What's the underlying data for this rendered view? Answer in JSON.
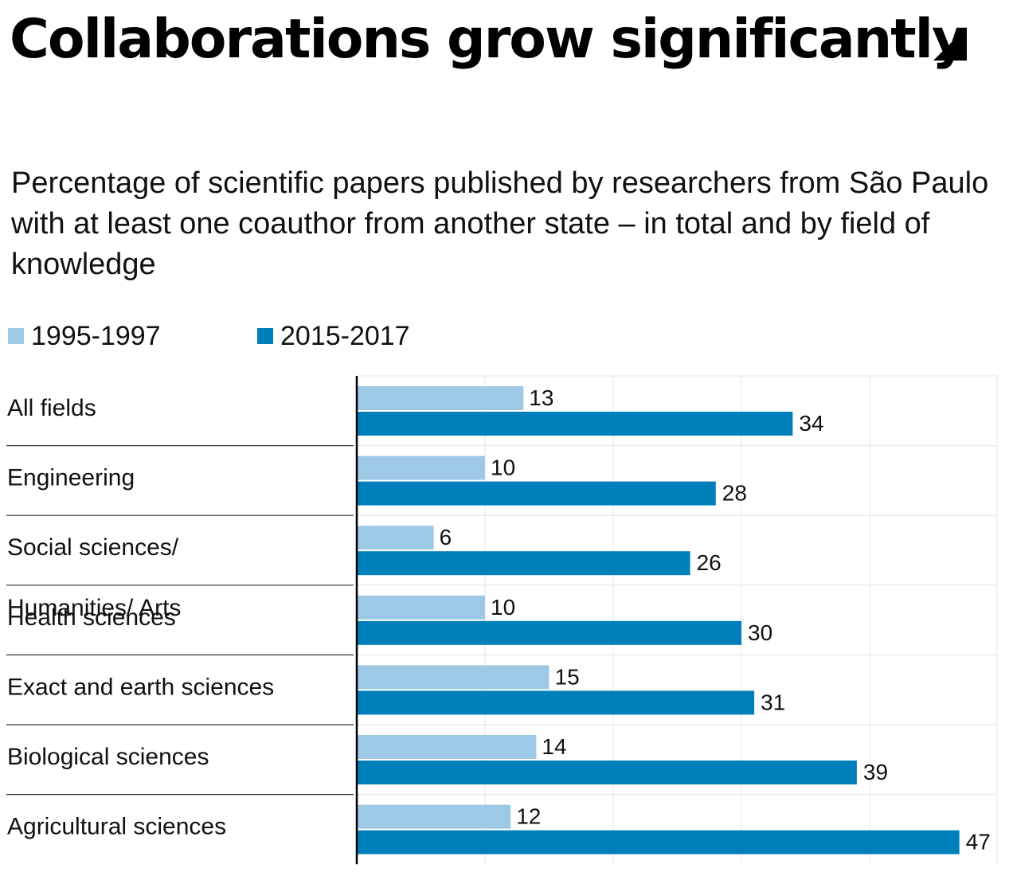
{
  "header": {
    "title": "Collaborations grow significantly",
    "subtitle": "Percentage of scientific papers published by researchers from São Paulo with at least one coauthor from another state – in total and by field of knowledge"
  },
  "legend": [
    {
      "label": "1995-1997",
      "color": "#9dc8e6"
    },
    {
      "label": "2015-2017",
      "color": "#0080bb"
    }
  ],
  "chart_data": {
    "type": "bar",
    "orientation": "horizontal",
    "title": "Collaborations grow significantly",
    "subtitle": "Percentage of scientific papers published by researchers from São Paulo with at least one coauthor from another state – in total and by field of knowledge",
    "categories": [
      [
        "All fields"
      ],
      [
        "Engineering"
      ],
      [
        "Social sciences/",
        "Humanities/ Arts"
      ],
      [
        "Health sciences"
      ],
      [
        "Exact and earth sciences"
      ],
      [
        "Biological sciences"
      ],
      [
        "Agricultural sciences"
      ]
    ],
    "series": [
      {
        "name": "1995-1997",
        "color": "#9dc8e6",
        "values": [
          13,
          10,
          6,
          10,
          15,
          14,
          12
        ]
      },
      {
        "name": "2015-2017",
        "color": "#0080bb",
        "values": [
          34,
          28,
          26,
          30,
          31,
          39,
          47
        ]
      }
    ],
    "xlim": [
      0,
      50
    ],
    "grid": true,
    "xlabel": "",
    "ylabel": "",
    "legend_position": "top-left",
    "data_labels": true
  }
}
